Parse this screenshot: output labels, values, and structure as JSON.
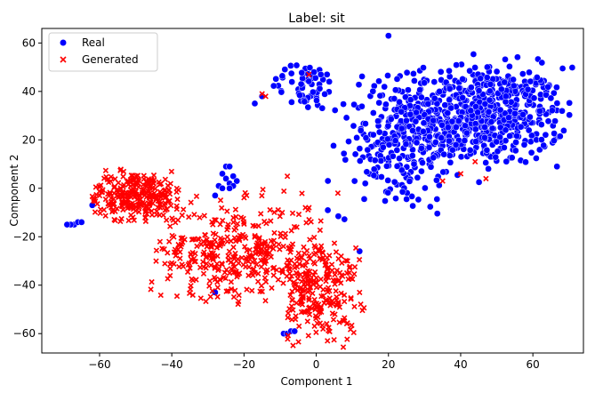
{
  "chart_data": {
    "type": "scatter",
    "title": "Label: sit",
    "xlabel": "Component 1",
    "ylabel": "Component 2",
    "xlim": [
      -76,
      74
    ],
    "ylim": [
      -68,
      66
    ],
    "xticks": [
      -60,
      -40,
      -20,
      0,
      20,
      40,
      60
    ],
    "yticks": [
      -60,
      -40,
      -20,
      0,
      20,
      40,
      60
    ],
    "xtick_labels": [
      "−60",
      "−40",
      "−20",
      "0",
      "20",
      "40",
      "60"
    ],
    "ytick_labels": [
      "−60",
      "−40",
      "−20",
      "0",
      "20",
      "40",
      "60"
    ],
    "grid": false,
    "legend_position": "top-left",
    "series": [
      {
        "name": "Real",
        "marker": "circle",
        "color": "#0000ff",
        "clusters": [
          {
            "cx": 45,
            "cy": 30,
            "sx": 12,
            "sy": 10,
            "n": 650,
            "xmin": 18,
            "xmax": 71,
            "ymin": 2,
            "ymax": 58
          },
          {
            "cx": 22,
            "cy": 18,
            "sx": 9,
            "sy": 14,
            "n": 220,
            "xmin": 3,
            "xmax": 40,
            "ymin": -13,
            "ymax": 50
          },
          {
            "cx": -3,
            "cy": 42,
            "sx": 5,
            "sy": 5,
            "n": 60,
            "xmin": -12,
            "xmax": 4,
            "ymin": 32,
            "ymax": 52
          }
        ],
        "extra_points": [
          [
            -67,
            -15
          ],
          [
            -68,
            -15
          ],
          [
            -69,
            -15
          ],
          [
            -66,
            -14
          ],
          [
            -65,
            -14
          ],
          [
            -62,
            -7
          ],
          [
            -25,
            9
          ],
          [
            -24,
            9
          ],
          [
            -26,
            6
          ],
          [
            -23,
            5
          ],
          [
            -25,
            4
          ],
          [
            -22,
            3
          ],
          [
            -24,
            2
          ],
          [
            -23,
            1
          ],
          [
            -27,
            1
          ],
          [
            -26,
            0
          ],
          [
            -24,
            0
          ],
          [
            -28,
            -3
          ],
          [
            -9,
            -60
          ],
          [
            -8,
            -60
          ],
          [
            -7,
            -59
          ],
          [
            -6,
            -59
          ],
          [
            -28,
            -43
          ],
          [
            12,
            -26
          ],
          [
            20,
            63
          ],
          [
            -15,
            38
          ],
          [
            -17,
            35
          ],
          [
            3,
            47
          ]
        ]
      },
      {
        "name": "Generated",
        "marker": "x",
        "color": "#ff0000",
        "clusters": [
          {
            "cx": -50,
            "cy": -3,
            "sx": 7,
            "sy": 5,
            "n": 280,
            "xmin": -62,
            "xmax": -38,
            "ymin": -14,
            "ymax": 8
          },
          {
            "cx": -22,
            "cy": -27,
            "sx": 12,
            "sy": 10,
            "n": 380,
            "xmin": -46,
            "xmax": 2,
            "ymin": -48,
            "ymax": 0
          },
          {
            "cx": 0,
            "cy": -42,
            "sx": 6,
            "sy": 12,
            "n": 230,
            "xmin": -8,
            "xmax": 14,
            "ymin": -66,
            "ymax": -22
          }
        ],
        "extra_points": [
          [
            -15,
            39
          ],
          [
            -14,
            38
          ],
          [
            -2,
            47
          ],
          [
            35,
            3
          ],
          [
            40,
            6
          ],
          [
            44,
            11
          ],
          [
            47,
            4
          ],
          [
            -8,
            5
          ],
          [
            -3,
            -8
          ],
          [
            -2,
            -8
          ],
          [
            6,
            -2
          ],
          [
            -42,
            -1
          ],
          [
            12,
            -43
          ]
        ]
      }
    ]
  }
}
